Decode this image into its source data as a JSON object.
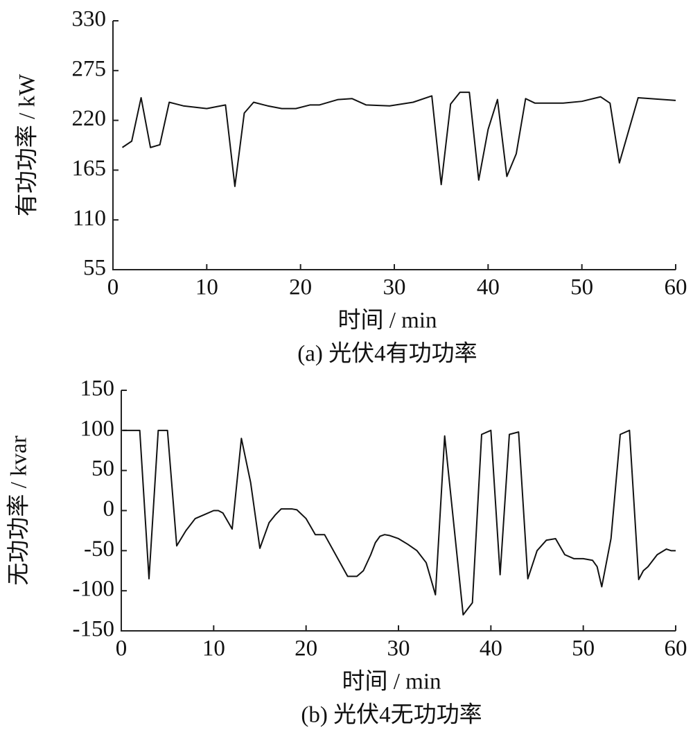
{
  "chart_data": [
    {
      "type": "line",
      "caption": "(a)  光伏4有功功率",
      "xlabel": "时间 / min",
      "ylabel": "有功功率 / kW",
      "xlim": [
        0,
        60
      ],
      "xticks": [
        0,
        10,
        20,
        30,
        40,
        50,
        60
      ],
      "ylim": [
        55,
        330
      ],
      "yticks": [
        55,
        110,
        165,
        220,
        275,
        330
      ],
      "series": [
        {
          "color": "#111111",
          "x": [
            1,
            2,
            3,
            4,
            5,
            6,
            7.5,
            10,
            12,
            13,
            14,
            15,
            16.5,
            18,
            19.5,
            21,
            22,
            24,
            25.5,
            27,
            29.5,
            32,
            34,
            35,
            36,
            37,
            38,
            39,
            40,
            41,
            42,
            43,
            44,
            45,
            48,
            50,
            52,
            53,
            54,
            56,
            60
          ],
          "values": [
            190,
            197,
            245,
            190,
            193,
            240,
            236,
            233,
            237,
            147,
            228,
            240,
            236,
            233,
            233,
            237,
            237,
            243,
            244,
            237,
            236,
            240,
            247,
            149,
            238,
            251,
            251,
            154,
            210,
            243,
            158,
            183,
            244,
            239,
            239,
            241,
            246,
            239,
            173,
            245,
            242
          ]
        }
      ]
    },
    {
      "type": "line",
      "caption": "(b)  光伏4无功功率",
      "xlabel": "时间 / min",
      "ylabel": "无功功率 / kvar",
      "xlim": [
        0,
        60
      ],
      "xticks": [
        0,
        10,
        20,
        30,
        40,
        50,
        60
      ],
      "ylim": [
        -150,
        150
      ],
      "yticks": [
        -150,
        -100,
        -50,
        0,
        50,
        100,
        150
      ],
      "series": [
        {
          "color": "#111111",
          "x": [
            0.2,
            2,
            3,
            4,
            5,
            6,
            7,
            8,
            9,
            10,
            10.5,
            11,
            12,
            13,
            14,
            15,
            16,
            16.7,
            17.3,
            18.5,
            19,
            20,
            21,
            22,
            24.5,
            25.5,
            26.2,
            27,
            27.5,
            28,
            28.5,
            29,
            30,
            31,
            32,
            33,
            34,
            35,
            37,
            38,
            39,
            40,
            41,
            42,
            43,
            44,
            45,
            46,
            47,
            48,
            49,
            50,
            51,
            51.5,
            52,
            53,
            54,
            55,
            56,
            56.5,
            57,
            58,
            59,
            59.5,
            60
          ],
          "values": [
            100,
            100,
            -85,
            100,
            100,
            -44,
            -25,
            -10,
            -5,
            0,
            0,
            -3,
            -23,
            90,
            35,
            -47,
            -15,
            -5,
            2,
            2,
            1,
            -10,
            -30,
            -30,
            -82,
            -82,
            -75,
            -55,
            -40,
            -32,
            -30,
            -31,
            -35,
            -42,
            -50,
            -65,
            -105,
            93,
            -130,
            -115,
            95,
            100,
            -80,
            95,
            98,
            -85,
            -50,
            -37,
            -35,
            -55,
            -60,
            -60,
            -62,
            -70,
            -95,
            -35,
            95,
            100,
            -86,
            -75,
            -70,
            -55,
            -48,
            -50,
            -50
          ]
        }
      ]
    }
  ]
}
